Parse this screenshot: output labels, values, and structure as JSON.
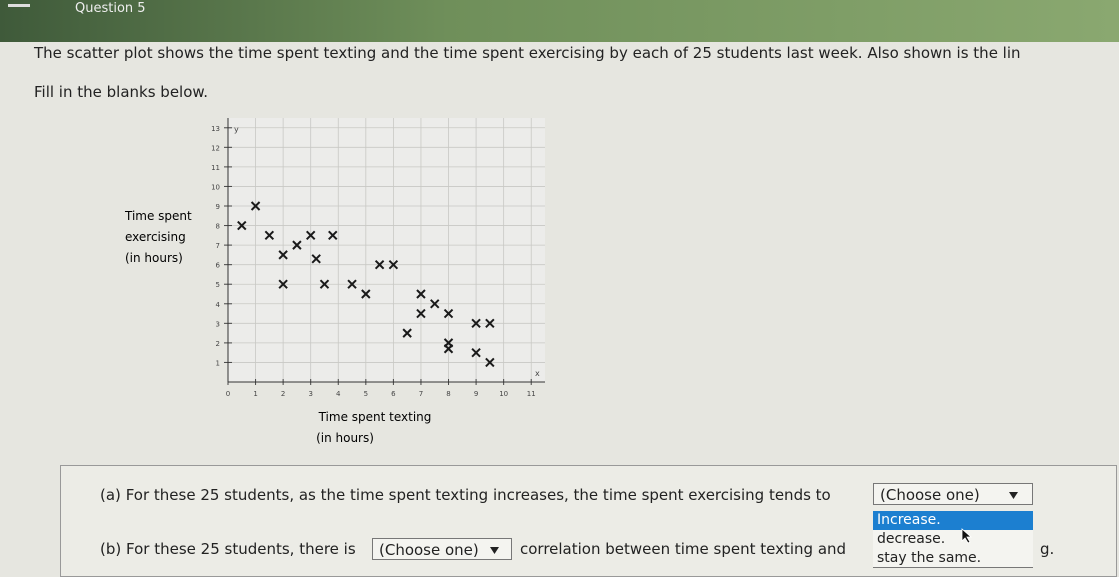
{
  "header": {
    "title": "Question 5"
  },
  "prompt": "The scatter plot shows the time spent texting and the time spent exercising by each of 25 students last week. Also shown is the lin",
  "instruction": "Fill in the blanks below.",
  "chart_data": {
    "type": "scatter",
    "ylabel": [
      "Time spent",
      "exercising",
      "(in hours)"
    ],
    "xlabel": [
      "Time spent texting",
      "(in hours)"
    ],
    "x_symbol": "x",
    "y_symbol": "y",
    "x": [
      1,
      0.5,
      1.5,
      2,
      2.5,
      3,
      3.8,
      3.2,
      2,
      3.5,
      4.5,
      5.5,
      6,
      5,
      7,
      7.5,
      7,
      8,
      9,
      9.5,
      6.5,
      8,
      8,
      9,
      9.5
    ],
    "values": [
      9,
      8,
      7.5,
      6.5,
      7,
      7.5,
      7.5,
      6.3,
      5,
      5,
      5,
      6,
      6,
      4.5,
      4.5,
      4,
      3.5,
      3.5,
      3,
      3,
      2.5,
      2,
      1.7,
      1.5,
      1
    ],
    "color": "#1a1a1a",
    "xlim": [
      0,
      11.5
    ],
    "ylim": [
      0,
      13.5
    ],
    "xticks": [
      0,
      1,
      2,
      3,
      4,
      5,
      6,
      7,
      8,
      9,
      10,
      11
    ],
    "yticks": [
      1,
      2,
      3,
      4,
      5,
      6,
      7,
      8,
      9,
      10,
      11,
      12,
      13
    ],
    "grid": true
  },
  "parts": [
    {
      "label": "(a)",
      "text": "For these 25 students, as the time spent texting increases, the time spent exercising tends to",
      "dropdown": "(Choose one)"
    },
    {
      "label": "(b)",
      "text": "For these 25 students, there is",
      "dropdown": "(Choose one)",
      "after": "correlation between time spent texting and",
      "tail": "g."
    }
  ],
  "options": [
    "Increase.",
    "decrease.",
    "stay the same."
  ]
}
